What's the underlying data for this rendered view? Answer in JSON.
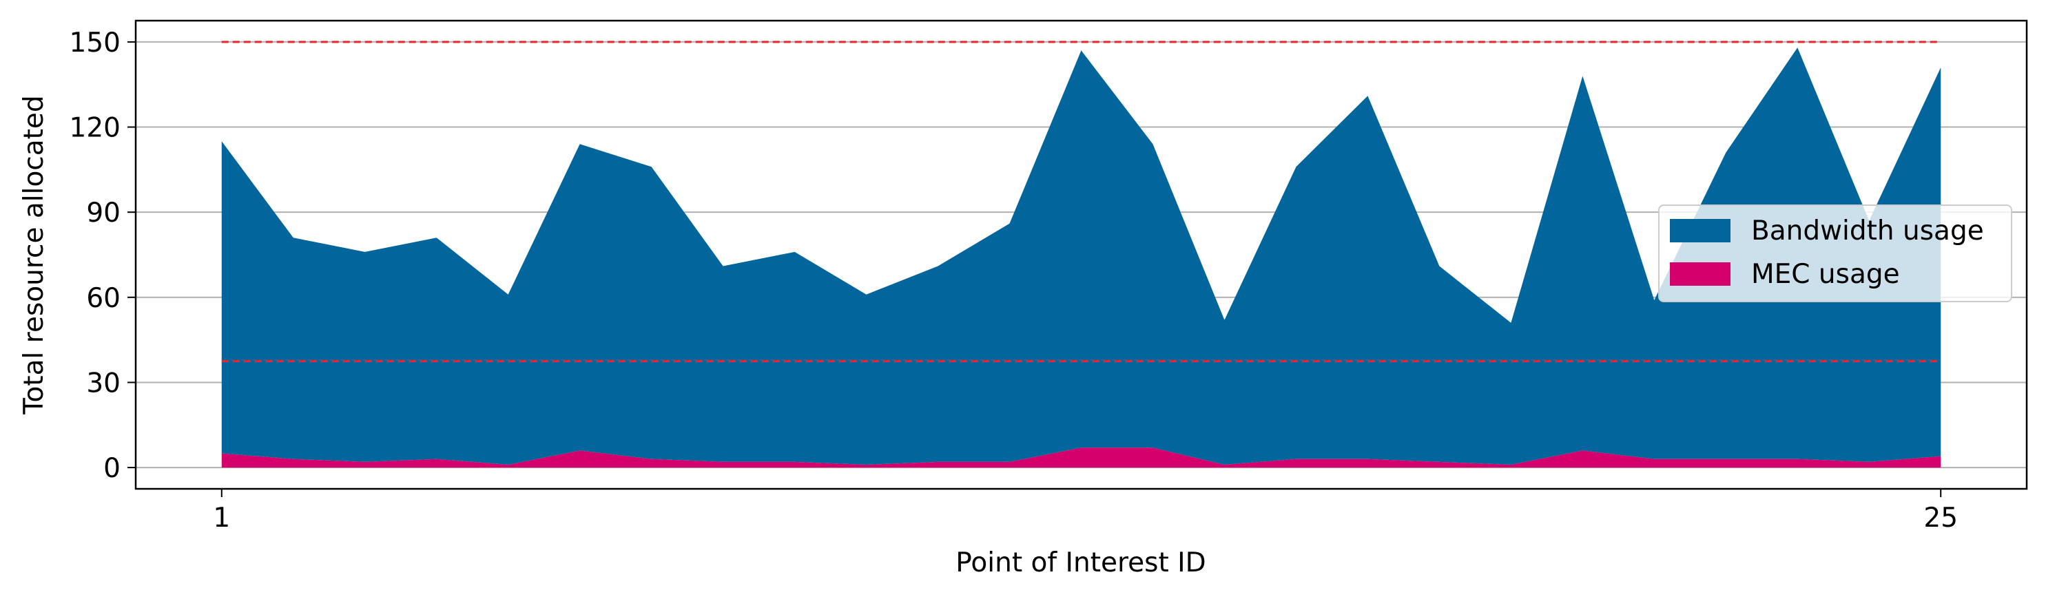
{
  "chart_data": {
    "type": "area",
    "stacked": true,
    "x": [
      1,
      2,
      3,
      4,
      5,
      6,
      7,
      8,
      9,
      10,
      11,
      12,
      13,
      14,
      15,
      16,
      17,
      18,
      19,
      20,
      21,
      22,
      23,
      24,
      25
    ],
    "series": [
      {
        "name": "Bandwidth usage",
        "color": "#02659B",
        "values": [
          110,
          78,
          74,
          78,
          60,
          108,
          103,
          69,
          74,
          60,
          69,
          84,
          140,
          107,
          51,
          103,
          128,
          69,
          50,
          132,
          56,
          108,
          145,
          85,
          137
        ]
      },
      {
        "name": "MEC usage",
        "color": "#D4006C",
        "values": [
          5,
          3,
          2,
          3,
          1,
          6,
          3,
          2,
          2,
          1,
          2,
          2,
          7,
          7,
          1,
          3,
          3,
          2,
          1,
          6,
          3,
          3,
          3,
          2,
          4
        ]
      }
    ],
    "thresholds": [
      {
        "y": 150,
        "color": "#E8262B",
        "style": "dashed"
      },
      {
        "y": 37.5,
        "color": "#E8262B",
        "style": "dashed"
      }
    ],
    "xticks": [
      "1",
      "25"
    ],
    "yticks": [
      "0",
      "30",
      "60",
      "90",
      "120",
      "150"
    ],
    "xlabel": "Point of Interest ID",
    "ylabel": "Total resource allocated",
    "xlim": [
      -0.2,
      26.2
    ],
    "ylim": [
      -7.5,
      157.5
    ],
    "grid": "y",
    "legend_position": "center-right"
  }
}
